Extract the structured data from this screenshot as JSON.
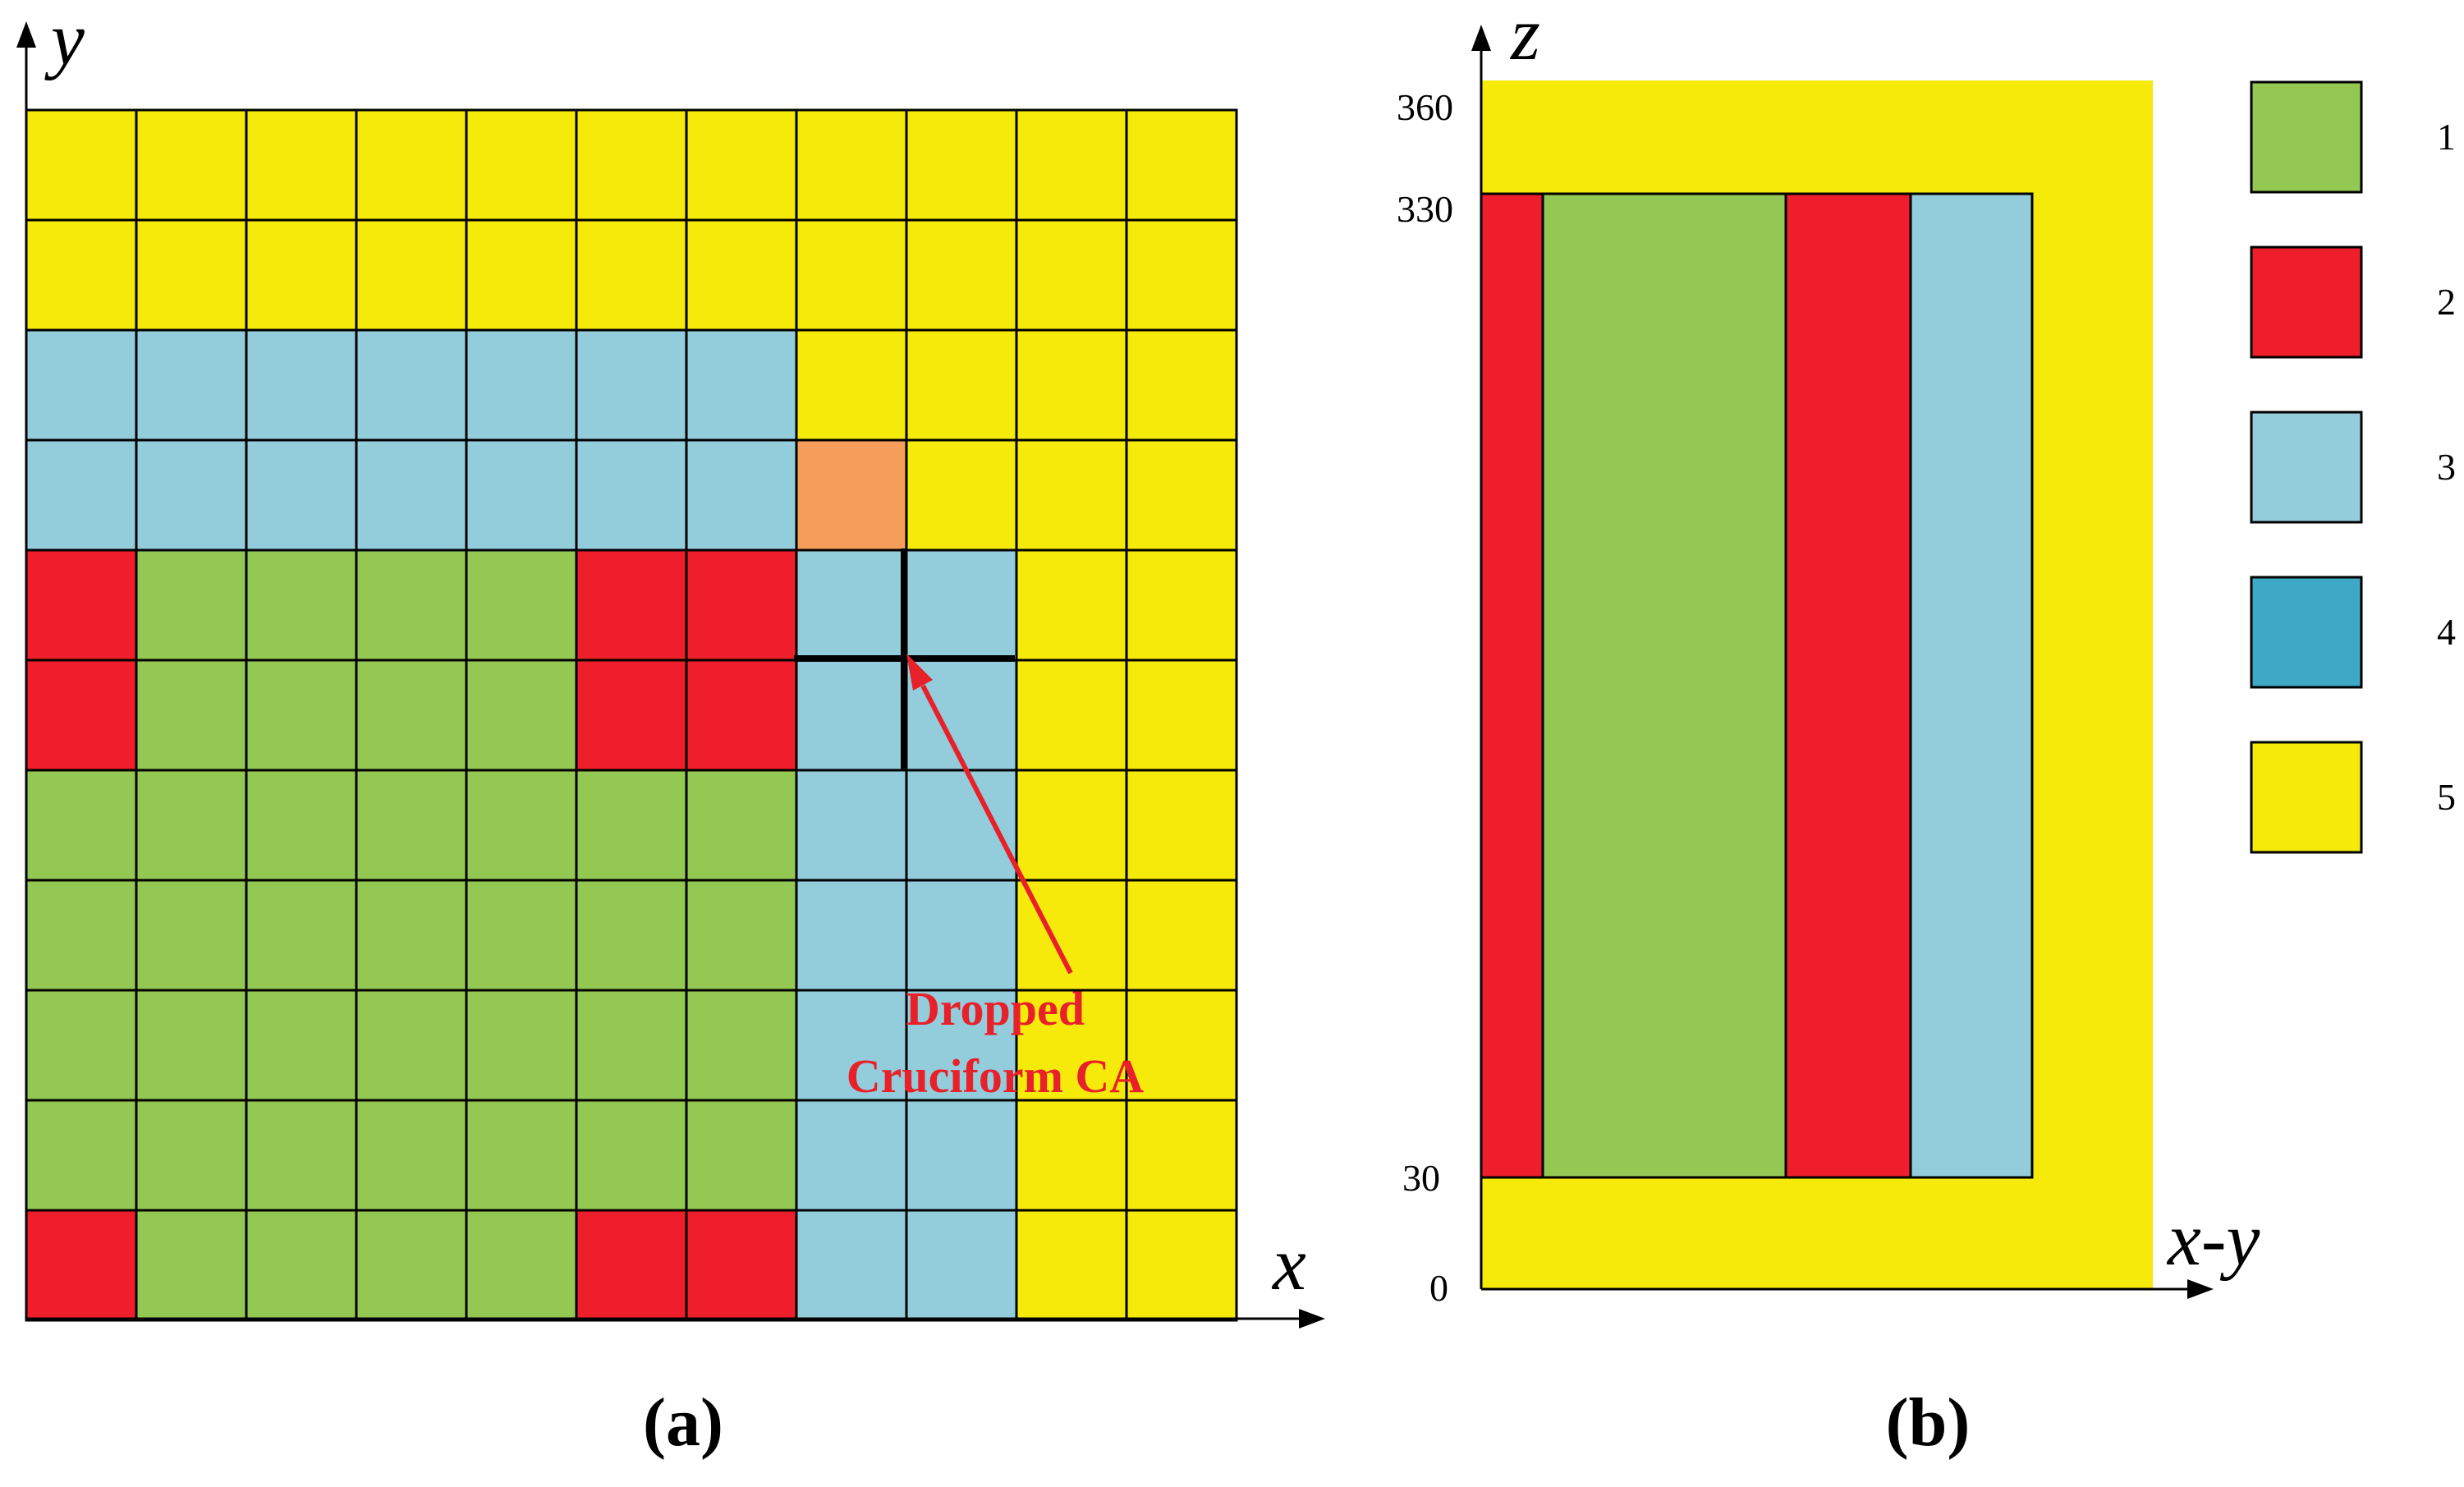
{
  "panel_a": {
    "label": "(a)",
    "x_axis_label": "x",
    "y_axis_label": "y",
    "grid": {
      "rows": [
        [
          5,
          5,
          5,
          5,
          5,
          5,
          5,
          5,
          5,
          5,
          5
        ],
        [
          5,
          5,
          5,
          5,
          5,
          5,
          5,
          5,
          5,
          5,
          5
        ],
        [
          3,
          3,
          3,
          3,
          3,
          3,
          3,
          5,
          5,
          5,
          5
        ],
        [
          3,
          3,
          3,
          3,
          3,
          3,
          3,
          "dropped",
          5,
          5,
          5
        ],
        [
          2,
          1,
          1,
          1,
          1,
          2,
          2,
          3,
          3,
          5,
          5
        ],
        [
          2,
          1,
          1,
          1,
          1,
          2,
          2,
          3,
          3,
          5,
          5
        ],
        [
          1,
          1,
          1,
          1,
          1,
          1,
          1,
          3,
          3,
          5,
          5
        ],
        [
          1,
          1,
          1,
          1,
          1,
          1,
          1,
          3,
          3,
          5,
          5
        ],
        [
          1,
          1,
          1,
          1,
          1,
          1,
          1,
          3,
          3,
          5,
          5
        ],
        [
          1,
          1,
          1,
          1,
          1,
          1,
          1,
          3,
          3,
          5,
          5
        ],
        [
          2,
          1,
          1,
          1,
          1,
          2,
          2,
          3,
          3,
          5,
          5
        ]
      ]
    },
    "annotation": {
      "line1": "Dropped",
      "line2": "Cruciform CA",
      "color": "#e8202a"
    },
    "dropped_cell_color": "#f59d5a"
  },
  "panel_b": {
    "label": "(b)",
    "x_axis_label": "x-y",
    "z_axis_label": "z",
    "z_ticks": [
      "0",
      "30",
      "330",
      "360"
    ]
  },
  "legend": [
    {
      "label": "1",
      "color": "#93c953"
    },
    {
      "label": "2",
      "color": "#ee1f2a"
    },
    {
      "label": "3",
      "color": "#93cddc"
    },
    {
      "label": "4",
      "color": "#3ea8c7"
    },
    {
      "label": "5",
      "color": "#f5ea0a"
    }
  ]
}
